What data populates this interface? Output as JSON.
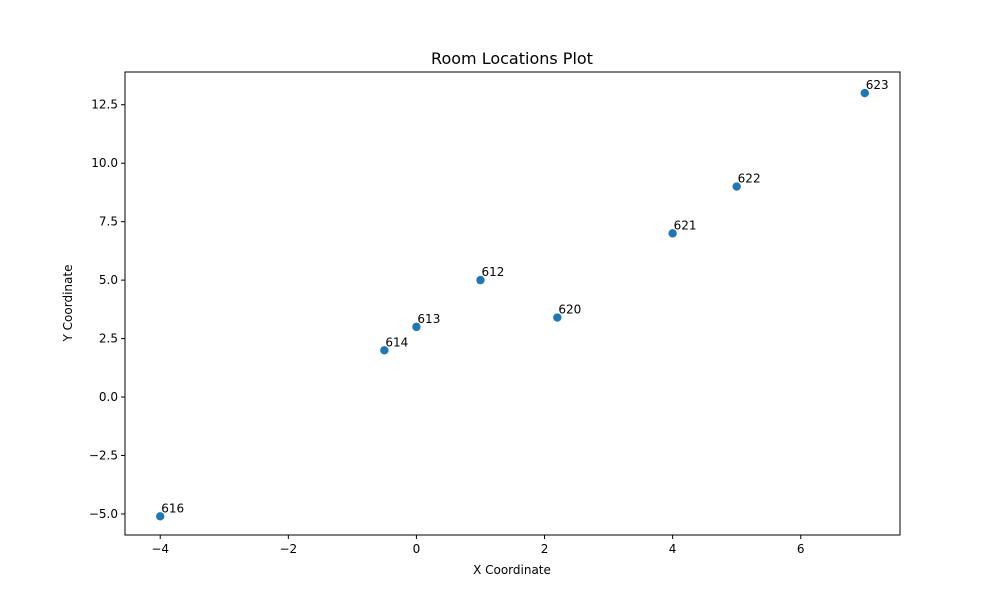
{
  "chart_data": {
    "type": "scatter",
    "title": "Room Locations Plot",
    "xlabel": "X Coordinate",
    "ylabel": "Y Coordinate",
    "xlim": [
      -4.55,
      7.55
    ],
    "ylim": [
      -5.9,
      13.9
    ],
    "xticks": [
      -4,
      -2,
      0,
      2,
      4,
      6
    ],
    "xtick_labels": [
      "−4",
      "−2",
      "0",
      "2",
      "4",
      "6"
    ],
    "yticks": [
      -5.0,
      -2.5,
      0.0,
      2.5,
      5.0,
      7.5,
      10.0,
      12.5
    ],
    "ytick_labels": [
      "−5.0",
      "−2.5",
      "0.0",
      "2.5",
      "5.0",
      "7.5",
      "10.0",
      "12.5"
    ],
    "grid": false,
    "color": "#1f77b4",
    "points": [
      {
        "label": "623",
        "x": 7.0,
        "y": 13.0
      },
      {
        "label": "622",
        "x": 5.0,
        "y": 9.0
      },
      {
        "label": "621",
        "x": 4.0,
        "y": 7.0
      },
      {
        "label": "612",
        "x": 1.0,
        "y": 5.0
      },
      {
        "label": "620",
        "x": 2.2,
        "y": 3.4
      },
      {
        "label": "613",
        "x": 0.0,
        "y": 3.0
      },
      {
        "label": "614",
        "x": -0.5,
        "y": 2.0
      },
      {
        "label": "616",
        "x": -4.0,
        "y": -5.1
      }
    ]
  }
}
